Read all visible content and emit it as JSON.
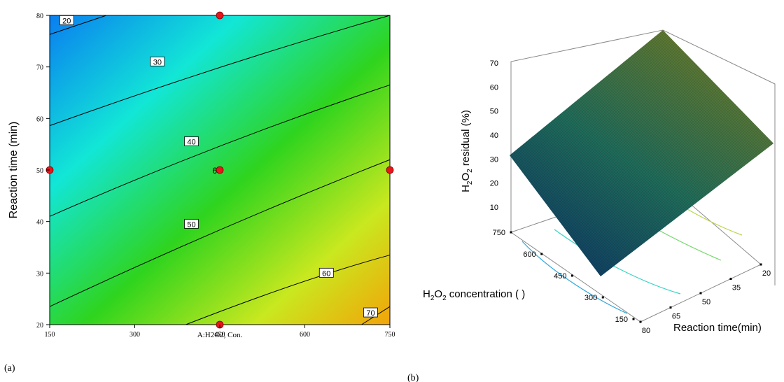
{
  "chart_data": [
    {
      "type": "heatmap",
      "subtype": "contour",
      "panel_label": "(a)",
      "xlabel": "A:H2O2, Con.",
      "ylabel": "Reaction time (min)",
      "xlim": [
        150,
        750
      ],
      "ylim": [
        20,
        80
      ],
      "x_ticks": [
        "150",
        "300",
        "450",
        "600",
        "750"
      ],
      "y_ticks": [
        "20",
        "30",
        "40",
        "50",
        "60",
        "70",
        "80"
      ],
      "contour_levels": [
        {
          "label": "20",
          "points": [
            [
              150,
              76.3
            ],
            [
              250,
              80
            ]
          ],
          "label_at": [
            180,
            79
          ]
        },
        {
          "label": "30",
          "points": [
            [
              150,
              58.6
            ],
            [
              450,
              70.5
            ],
            [
              750,
              80
            ]
          ],
          "label_at": [
            340,
            71
          ]
        },
        {
          "label": "40",
          "points": [
            [
              150,
              41
            ],
            [
              450,
              55.5
            ],
            [
              750,
              66.5
            ]
          ],
          "label_at": [
            400,
            55.5
          ]
        },
        {
          "label": "50",
          "points": [
            [
              150,
              23.5
            ],
            [
              450,
              39
            ],
            [
              750,
              52
            ]
          ],
          "label_at": [
            400,
            39.5
          ]
        },
        {
          "label": "60",
          "points": [
            [
              390,
              20
            ],
            [
              600,
              29
            ],
            [
              750,
              33.5
            ]
          ],
          "label_at": [
            638,
            30
          ]
        },
        {
          "label": "70",
          "points": [
            [
              700,
              20
            ],
            [
              750,
              23.5
            ]
          ],
          "label_at": [
            716,
            22.3
          ]
        }
      ],
      "design_points": [
        {
          "x": 150,
          "y": 50
        },
        {
          "x": 450,
          "y": 80
        },
        {
          "x": 450,
          "y": 50,
          "label": "6"
        },
        {
          "x": 450,
          "y": 20
        },
        {
          "x": 750,
          "y": 50
        }
      ],
      "colors": {
        "low": "#0a7ef0",
        "mid_low": "#12e6d6",
        "mid": "#2fd41e",
        "mid_high": "#c9e81f",
        "high": "#f2a409"
      }
    },
    {
      "type": "surface",
      "panel_label": "(b)",
      "zlabel_parts": {
        "a": "H",
        "sub1": "2",
        "b": "O",
        "sub2": "2",
        "c": " residual (%)"
      },
      "xlabel": "Reaction time(min)",
      "ylabel_parts": {
        "a": "H",
        "sub1": "2",
        "b": "O",
        "sub2": "2",
        "c": " concentration (    )"
      },
      "z_ticks": [
        "70",
        "60",
        "50",
        "40",
        "30",
        "20",
        "10"
      ],
      "time_ticks": [
        "80",
        "65",
        "50",
        "35",
        "20"
      ],
      "conc_ticks": [
        "150",
        "300",
        "450",
        "600",
        "750"
      ],
      "colors": {
        "surface_dark": "#0f3d63",
        "surface_mid": "#1f6b5a",
        "surface_light": "#6a7a2a",
        "floor_contours": [
          "#2aa7e0",
          "#35d3c4",
          "#73d86a",
          "#b8d64d"
        ]
      }
    }
  ]
}
